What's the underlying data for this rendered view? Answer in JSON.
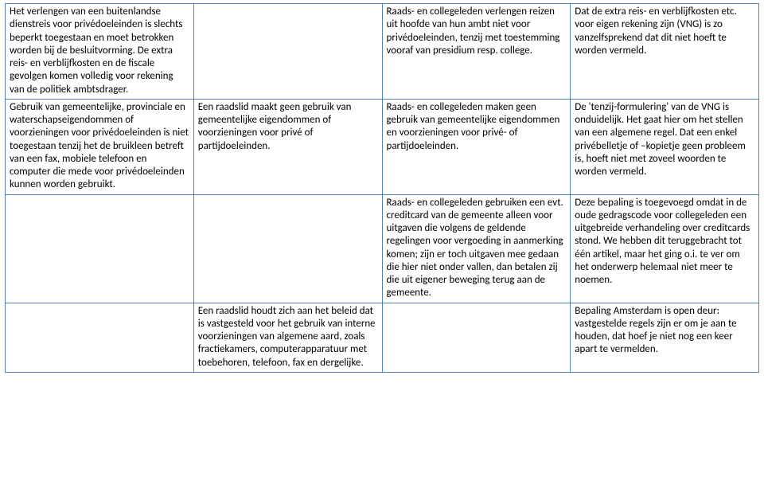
{
  "rows": [
    {
      "c1": "Het verlengen van een buitenlandse dienstreis voor privédoeleinden is slechts beperkt toegestaan en moet betrokken worden bij de besluitvorming. De extra reis- en verblijfkosten en de fiscale gevolgen komen volledig voor rekening van de politiek ambtsdrager.",
      "c2": "",
      "c3": "Raads- en collegeleden verlengen reizen uit hoofde van hun ambt niet voor privédoeleinden, tenzij met toestemming vooraf van presidium resp. college.",
      "c4": "Dat de extra reis- en verblijfkosten etc. voor eigen rekening zijn (VNG) is zo vanzelfsprekend dat dit niet hoeft te worden vermeld."
    },
    {
      "c1": "Gebruik van gemeentelijke, provinciale en waterschapseigendommen of voorzieningen voor privédoeleinden is niet toegestaan tenzij het de bruikleen betreft van een fax, mobiele telefoon en computer die mede voor privédoeleinden kunnen worden gebruikt.",
      "c2": "Een raadslid maakt geen gebruik van gemeentelijke eigendommen of voorzieningen voor privé of partijdoeleinden.",
      "c3": "Raads- en collegeleden maken geen gebruik van gemeentelijke eigendommen en voorzieningen voor privé- of partijdoeleinden.",
      "c4": "De 'tenzij-formulering' van de VNG is onduidelijk. Het gaat hier om het stellen van een algemene regel. Dat een enkel privébelletje of –kopietje geen probleem is, hoeft niet met zoveel woorden te worden vermeld."
    },
    {
      "c1": "",
      "c2": "",
      "c3": "Raads- en collegeleden gebruiken een evt. creditcard van de gemeente alleen voor uitgaven die volgens de geldende regelingen voor vergoeding in aanmerking komen; zijn er toch uitgaven mee gedaan die hier niet onder vallen, dan betalen zij die uit eigener beweging terug aan de gemeente.",
      "c4": "Deze bepaling is toegevoegd omdat in de oude gedragscode voor collegeleden een uitgebreide verhandeling over creditcards stond. We hebben dit teruggebracht tot één artikel, maar het ging o.i. te ver om het onderwerp helemaal niet meer te noemen."
    },
    {
      "c1": "",
      "c2": "Een raadslid houdt zich aan het beleid dat is vastgesteld voor het gebruik van interne voorzieningen van algemene aard, zoals fractiekamers, computerapparatuur met toebehoren, telefoon, fax en dergelijke.",
      "c3": "",
      "c4": "Bepaling Amsterdam is open deur: vastgestelde regels zijn er om je aan te houden, dat hoef je niet nog een keer apart te vermelden."
    }
  ]
}
